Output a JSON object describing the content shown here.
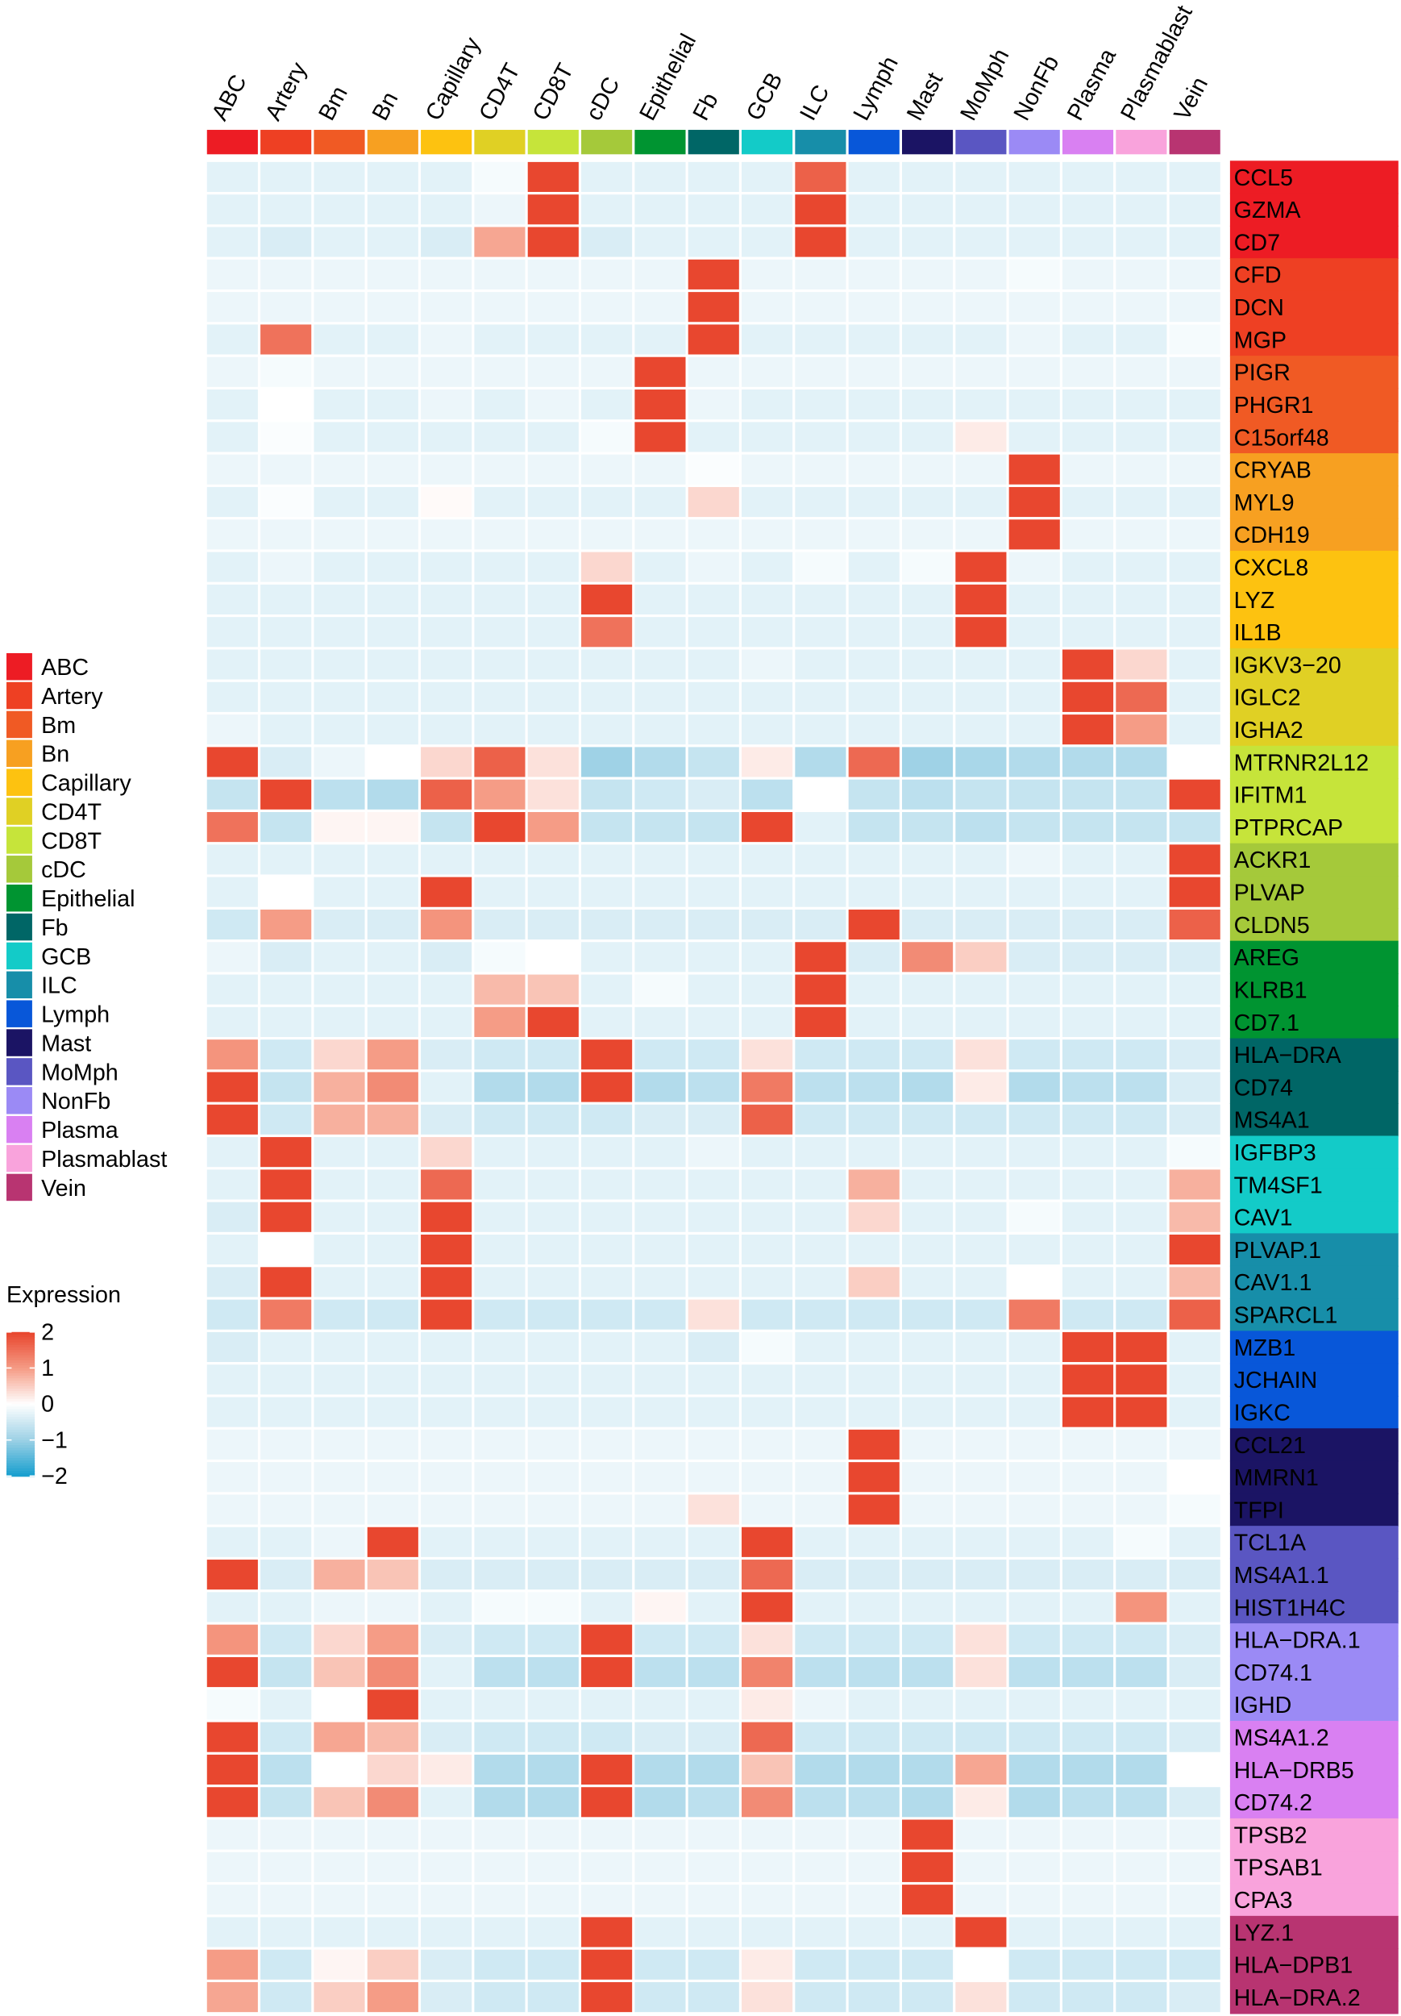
{
  "chart_data": {
    "type": "heatmap",
    "legend_title": "Expression",
    "scale": {
      "min": -2,
      "max": 2,
      "ticks": [
        "2",
        "1",
        "0",
        "−1",
        "−2"
      ],
      "tick_values": [
        2,
        1,
        0,
        -1,
        -2
      ],
      "stops": [
        [
          -2,
          "#1ba0cf"
        ],
        [
          -1,
          "#9fd2e6"
        ],
        [
          0,
          "#ffffff"
        ],
        [
          1,
          "#f59c86"
        ],
        [
          2,
          "#e8472f"
        ]
      ]
    },
    "columns": [
      "ABC",
      "Artery",
      "Bm",
      "Bn",
      "Capillary",
      "CD4T",
      "CD8T",
      "cDC",
      "Epithelial",
      "Fb",
      "GCB",
      "ILC",
      "Lymph",
      "Mast",
      "MoMph",
      "NonFb",
      "Plasma",
      "Plasmablast",
      "Vein"
    ],
    "cluster_colors": [
      "#ed1c24",
      "#ee4023",
      "#f05a24",
      "#f7a021",
      "#fdc210",
      "#e0d024",
      "#c6e43a",
      "#a5c93a",
      "#009431",
      "#006666",
      "#13cbc8",
      "#178ea9",
      "#0857d9",
      "#1b1464",
      "#5a56c2",
      "#9b8af5",
      "#d980f2",
      "#f9a3dc",
      "#b83471"
    ],
    "rows": [
      "CCL5",
      "GZMA",
      "CD7",
      "CFD",
      "DCN",
      "MGP",
      "PIGR",
      "PHGR1",
      "C15orf48",
      "CRYAB",
      "MYL9",
      "CDH19",
      "CXCL8",
      "LYZ",
      "IL1B",
      "IGKV3−20",
      "IGLC2",
      "IGHA2",
      "MTRNR2L12",
      "IFITM1",
      "PTPRCAP",
      "ACKR1",
      "PLVAP",
      "CLDN5",
      "AREG",
      "KLRB1",
      "CD7.1",
      "HLA−DRA",
      "CD74",
      "MS4A1",
      "IGFBP3",
      "TM4SF1",
      "CAV1",
      "PLVAP.1",
      "CAV1.1",
      "SPARCL1",
      "MZB1",
      "JCHAIN",
      "IGKC",
      "CCL21",
      "MMRN1",
      "TFPI",
      "TCL1A",
      "MS4A1.1",
      "HIST1H4C",
      "HLA−DRA.1",
      "CD74.1",
      "IGHD",
      "MS4A1.2",
      "HLA−DRB5",
      "CD74.2",
      "TPSB2",
      "TPSAB1",
      "CPA3",
      "LYZ.1",
      "HLA−DPB1",
      "HLA−DRA.2"
    ],
    "values": [
      [
        -0.3,
        -0.3,
        -0.3,
        -0.3,
        -0.3,
        -0.1,
        2,
        -0.3,
        -0.3,
        -0.3,
        -0.3,
        1.7,
        -0.3,
        -0.3,
        -0.3,
        -0.3,
        -0.3,
        -0.3,
        -0.3
      ],
      [
        -0.3,
        -0.3,
        -0.3,
        -0.3,
        -0.3,
        -0.2,
        2,
        -0.3,
        -0.3,
        -0.3,
        -0.3,
        2,
        -0.3,
        -0.3,
        -0.3,
        -0.3,
        -0.3,
        -0.3,
        -0.3
      ],
      [
        -0.3,
        -0.4,
        -0.3,
        -0.3,
        -0.4,
        0.9,
        2,
        -0.4,
        -0.3,
        -0.3,
        -0.3,
        2,
        -0.3,
        -0.3,
        -0.3,
        -0.3,
        -0.3,
        -0.3,
        -0.3
      ],
      [
        -0.2,
        -0.2,
        -0.2,
        -0.2,
        -0.2,
        -0.2,
        -0.2,
        -0.2,
        -0.2,
        2,
        -0.2,
        -0.2,
        -0.2,
        -0.2,
        -0.2,
        -0.1,
        -0.2,
        -0.2,
        -0.2
      ],
      [
        -0.2,
        -0.2,
        -0.2,
        -0.2,
        -0.2,
        -0.2,
        -0.2,
        -0.2,
        -0.2,
        2,
        -0.2,
        -0.2,
        -0.2,
        -0.2,
        -0.2,
        -0.2,
        -0.2,
        -0.2,
        -0.2
      ],
      [
        -0.3,
        1.5,
        -0.3,
        -0.3,
        -0.2,
        -0.3,
        -0.3,
        -0.3,
        -0.3,
        2,
        -0.3,
        -0.3,
        -0.3,
        -0.3,
        -0.3,
        -0.2,
        -0.3,
        -0.3,
        -0.1
      ],
      [
        -0.2,
        -0.1,
        -0.2,
        -0.2,
        -0.2,
        -0.2,
        -0.2,
        -0.2,
        2,
        -0.2,
        -0.2,
        -0.2,
        -0.2,
        -0.2,
        -0.2,
        -0.2,
        -0.2,
        -0.2,
        -0.2
      ],
      [
        -0.3,
        0,
        -0.3,
        -0.3,
        -0.2,
        -0.3,
        -0.2,
        -0.3,
        2,
        -0.2,
        -0.3,
        -0.3,
        -0.3,
        -0.3,
        -0.3,
        -0.3,
        -0.3,
        -0.3,
        -0.3
      ],
      [
        -0.3,
        -0.05,
        -0.3,
        -0.3,
        -0.3,
        -0.3,
        -0.3,
        -0.1,
        2,
        -0.3,
        -0.3,
        -0.3,
        -0.3,
        -0.3,
        0.2,
        -0.3,
        -0.3,
        -0.3,
        -0.3
      ],
      [
        -0.2,
        -0.2,
        -0.2,
        -0.2,
        -0.2,
        -0.2,
        -0.2,
        -0.2,
        -0.2,
        -0.05,
        -0.2,
        -0.2,
        -0.2,
        -0.2,
        -0.2,
        2,
        -0.2,
        -0.2,
        -0.2
      ],
      [
        -0.3,
        -0.05,
        -0.3,
        -0.3,
        0.05,
        -0.3,
        -0.3,
        -0.3,
        -0.3,
        0.4,
        -0.3,
        -0.3,
        -0.3,
        -0.3,
        -0.3,
        2,
        -0.3,
        -0.3,
        -0.3
      ],
      [
        -0.2,
        -0.2,
        -0.2,
        -0.2,
        -0.2,
        -0.2,
        -0.2,
        -0.2,
        -0.2,
        -0.2,
        -0.2,
        -0.2,
        -0.2,
        -0.2,
        -0.2,
        2,
        -0.2,
        -0.2,
        -0.2
      ],
      [
        -0.3,
        -0.2,
        -0.3,
        -0.3,
        -0.3,
        -0.3,
        -0.3,
        0.4,
        -0.3,
        -0.2,
        -0.3,
        -0.1,
        -0.3,
        -0.1,
        2,
        -0.2,
        -0.3,
        -0.3,
        -0.3
      ],
      [
        -0.3,
        -0.3,
        -0.3,
        -0.3,
        -0.3,
        -0.3,
        -0.3,
        2,
        -0.3,
        -0.3,
        -0.3,
        -0.3,
        -0.3,
        -0.3,
        2,
        -0.3,
        -0.3,
        -0.3,
        -0.3
      ],
      [
        -0.3,
        -0.3,
        -0.3,
        -0.3,
        -0.3,
        -0.3,
        -0.3,
        1.5,
        -0.3,
        -0.3,
        -0.3,
        -0.3,
        -0.3,
        -0.3,
        2,
        -0.3,
        -0.3,
        -0.3,
        -0.3
      ],
      [
        -0.3,
        -0.3,
        -0.3,
        -0.3,
        -0.3,
        -0.3,
        -0.3,
        -0.3,
        -0.3,
        -0.3,
        -0.2,
        -0.3,
        -0.3,
        -0.3,
        -0.3,
        -0.3,
        2,
        0.4,
        -0.3
      ],
      [
        -0.3,
        -0.3,
        -0.3,
        -0.3,
        -0.3,
        -0.3,
        -0.3,
        -0.3,
        -0.3,
        -0.3,
        -0.3,
        -0.3,
        -0.3,
        -0.3,
        -0.3,
        -0.3,
        2,
        1.6,
        -0.3
      ],
      [
        -0.2,
        -0.3,
        -0.3,
        -0.3,
        -0.3,
        -0.3,
        -0.3,
        -0.3,
        -0.3,
        -0.3,
        -0.3,
        -0.3,
        -0.3,
        -0.3,
        -0.3,
        -0.3,
        2,
        1.0,
        -0.3
      ],
      [
        2,
        -0.4,
        -0.2,
        0,
        0.4,
        1.7,
        0.3,
        -1,
        -0.8,
        -0.6,
        0.2,
        -0.8,
        1.6,
        -1,
        -0.9,
        -0.8,
        -0.8,
        -0.8,
        0
      ],
      [
        -0.6,
        2,
        -0.7,
        -0.8,
        1.7,
        1.0,
        0.3,
        -0.6,
        -0.5,
        -0.4,
        -0.7,
        0,
        -0.6,
        -0.7,
        -0.6,
        -0.6,
        -0.6,
        -0.6,
        2
      ],
      [
        1.5,
        -0.6,
        0.1,
        0.1,
        -0.6,
        2,
        1.0,
        -0.6,
        -0.6,
        -0.6,
        2,
        -0.3,
        -0.6,
        -0.6,
        -0.7,
        -0.6,
        -0.6,
        -0.6,
        -0.6
      ],
      [
        -0.3,
        -0.3,
        -0.3,
        -0.3,
        -0.3,
        -0.3,
        -0.3,
        -0.3,
        -0.3,
        -0.3,
        -0.3,
        -0.3,
        -0.3,
        -0.3,
        -0.3,
        -0.2,
        -0.3,
        -0.3,
        2
      ],
      [
        -0.3,
        0,
        -0.3,
        -0.3,
        2,
        -0.3,
        -0.3,
        -0.3,
        -0.3,
        -0.3,
        -0.3,
        -0.3,
        -0.3,
        -0.3,
        -0.3,
        -0.3,
        -0.3,
        -0.3,
        2
      ],
      [
        -0.5,
        1.0,
        -0.4,
        -0.4,
        1.1,
        -0.4,
        -0.4,
        -0.4,
        -0.4,
        -0.4,
        -0.4,
        -0.4,
        2,
        -0.4,
        -0.4,
        -0.4,
        -0.4,
        -0.4,
        1.7
      ],
      [
        -0.2,
        -0.4,
        -0.3,
        -0.3,
        -0.4,
        -0.1,
        0,
        -0.3,
        -0.3,
        -0.3,
        -0.3,
        2,
        -0.4,
        1.2,
        0.5,
        -0.4,
        -0.4,
        -0.4,
        -0.4
      ],
      [
        -0.3,
        -0.3,
        -0.3,
        -0.3,
        -0.3,
        0.7,
        0.6,
        -0.3,
        -0.1,
        -0.3,
        -0.3,
        2,
        -0.3,
        -0.3,
        -0.3,
        -0.3,
        -0.3,
        -0.3,
        -0.3
      ],
      [
        -0.3,
        -0.3,
        -0.3,
        -0.3,
        -0.3,
        1.0,
        2,
        -0.3,
        -0.3,
        -0.3,
        -0.3,
        2,
        -0.3,
        -0.3,
        -0.3,
        -0.3,
        -0.3,
        -0.3,
        -0.3
      ],
      [
        1.1,
        -0.5,
        0.4,
        1.0,
        -0.4,
        -0.5,
        -0.5,
        2,
        -0.5,
        -0.5,
        0.3,
        -0.5,
        -0.5,
        -0.5,
        0.3,
        -0.5,
        -0.5,
        -0.5,
        -0.4
      ],
      [
        2,
        -0.6,
        0.8,
        1.2,
        -0.3,
        -0.8,
        -0.8,
        2,
        -0.8,
        -0.7,
        1.4,
        -0.7,
        -0.7,
        -0.8,
        0.2,
        -0.8,
        -0.7,
        -0.7,
        -0.4
      ],
      [
        2,
        -0.5,
        0.8,
        0.8,
        -0.4,
        -0.5,
        -0.5,
        -0.5,
        -0.4,
        -0.4,
        1.7,
        -0.5,
        -0.5,
        -0.5,
        -0.5,
        -0.5,
        -0.5,
        -0.5,
        -0.4
      ],
      [
        -0.3,
        2,
        -0.3,
        -0.3,
        0.4,
        -0.3,
        -0.3,
        -0.3,
        -0.3,
        -0.2,
        -0.3,
        -0.3,
        -0.3,
        -0.3,
        -0.3,
        -0.3,
        -0.3,
        -0.3,
        -0.1
      ],
      [
        -0.3,
        2,
        -0.3,
        -0.3,
        1.6,
        -0.3,
        -0.3,
        -0.3,
        -0.3,
        -0.3,
        -0.3,
        -0.3,
        0.8,
        -0.3,
        -0.3,
        -0.3,
        -0.3,
        -0.3,
        0.8
      ],
      [
        -0.4,
        2,
        -0.3,
        -0.3,
        2,
        -0.3,
        -0.3,
        -0.3,
        -0.3,
        -0.3,
        -0.3,
        -0.3,
        0.4,
        -0.3,
        -0.3,
        -0.1,
        -0.3,
        -0.3,
        0.7
      ],
      [
        -0.3,
        0,
        -0.3,
        -0.3,
        2,
        -0.3,
        -0.3,
        -0.3,
        -0.3,
        -0.3,
        -0.3,
        -0.3,
        -0.3,
        -0.3,
        -0.3,
        -0.3,
        -0.3,
        -0.3,
        2
      ],
      [
        -0.4,
        2,
        -0.3,
        -0.3,
        2,
        -0.3,
        -0.3,
        -0.3,
        -0.3,
        -0.3,
        -0.3,
        -0.3,
        0.5,
        -0.3,
        -0.3,
        0,
        -0.3,
        -0.3,
        0.7
      ],
      [
        -0.5,
        1.4,
        -0.5,
        -0.5,
        2,
        -0.5,
        -0.5,
        -0.5,
        -0.5,
        0.3,
        -0.5,
        -0.5,
        -0.5,
        -0.5,
        -0.5,
        1.4,
        -0.5,
        -0.5,
        1.7
      ],
      [
        -0.4,
        -0.3,
        -0.3,
        -0.3,
        -0.3,
        -0.3,
        -0.3,
        -0.3,
        -0.3,
        -0.4,
        -0.1,
        -0.3,
        -0.3,
        -0.3,
        -0.3,
        -0.3,
        2,
        2,
        -0.3
      ],
      [
        -0.3,
        -0.3,
        -0.3,
        -0.3,
        -0.3,
        -0.3,
        -0.3,
        -0.3,
        -0.3,
        -0.3,
        -0.3,
        -0.3,
        -0.3,
        -0.3,
        -0.3,
        -0.3,
        2,
        2,
        -0.3
      ],
      [
        -0.3,
        -0.3,
        -0.3,
        -0.3,
        -0.3,
        -0.3,
        -0.3,
        -0.3,
        -0.3,
        -0.3,
        -0.3,
        -0.3,
        -0.3,
        -0.3,
        -0.3,
        -0.3,
        2,
        2,
        -0.3
      ],
      [
        -0.2,
        -0.2,
        -0.2,
        -0.2,
        -0.2,
        -0.2,
        -0.2,
        -0.2,
        -0.2,
        -0.2,
        -0.2,
        -0.2,
        2,
        -0.2,
        -0.2,
        -0.2,
        -0.2,
        -0.2,
        -0.2
      ],
      [
        -0.2,
        -0.2,
        -0.2,
        -0.2,
        -0.2,
        -0.2,
        -0.2,
        -0.2,
        -0.2,
        -0.2,
        -0.2,
        -0.2,
        2,
        -0.2,
        -0.2,
        -0.2,
        -0.2,
        -0.2,
        0
      ],
      [
        -0.2,
        -0.2,
        -0.2,
        -0.2,
        -0.2,
        -0.2,
        -0.2,
        -0.2,
        -0.2,
        0.3,
        -0.2,
        -0.2,
        2,
        -0.2,
        -0.2,
        -0.2,
        -0.2,
        -0.2,
        -0.1
      ],
      [
        -0.3,
        -0.3,
        -0.2,
        2,
        -0.3,
        -0.3,
        -0.3,
        -0.3,
        -0.3,
        -0.3,
        2,
        -0.3,
        -0.3,
        -0.3,
        -0.3,
        -0.3,
        -0.3,
        -0.1,
        -0.3
      ],
      [
        2,
        -0.4,
        0.8,
        0.6,
        -0.4,
        -0.4,
        -0.4,
        -0.4,
        -0.4,
        -0.4,
        1.6,
        -0.4,
        -0.4,
        -0.4,
        -0.4,
        -0.4,
        -0.4,
        -0.4,
        -0.4
      ],
      [
        -0.3,
        -0.3,
        -0.2,
        -0.2,
        -0.3,
        -0.1,
        -0.1,
        -0.3,
        0.1,
        -0.3,
        2,
        -0.3,
        -0.3,
        -0.3,
        -0.3,
        -0.3,
        -0.3,
        1.1,
        -0.3
      ],
      [
        1.1,
        -0.5,
        0.4,
        1.0,
        -0.4,
        -0.5,
        -0.5,
        2,
        -0.5,
        -0.5,
        0.3,
        -0.5,
        -0.5,
        -0.5,
        0.3,
        -0.5,
        -0.5,
        -0.5,
        -0.4
      ],
      [
        2,
        -0.6,
        0.6,
        1.2,
        -0.3,
        -0.7,
        -0.7,
        2,
        -0.7,
        -0.7,
        1.3,
        -0.7,
        -0.7,
        -0.7,
        0.3,
        -0.7,
        -0.7,
        -0.7,
        -0.4
      ],
      [
        -0.1,
        -0.3,
        0,
        2,
        -0.3,
        -0.3,
        -0.3,
        -0.3,
        -0.3,
        -0.3,
        0.2,
        -0.2,
        -0.3,
        -0.3,
        -0.3,
        -0.3,
        -0.3,
        -0.3,
        -0.3
      ],
      [
        2,
        -0.5,
        0.9,
        0.7,
        -0.4,
        -0.5,
        -0.5,
        -0.5,
        -0.4,
        -0.4,
        1.6,
        -0.5,
        -0.5,
        -0.5,
        -0.5,
        -0.5,
        -0.5,
        -0.5,
        -0.4
      ],
      [
        2,
        -0.7,
        0,
        0.4,
        0.2,
        -0.8,
        -0.8,
        2,
        -0.8,
        -0.8,
        0.6,
        -0.8,
        -0.8,
        -0.8,
        0.9,
        -0.8,
        -0.8,
        -0.8,
        0
      ],
      [
        2,
        -0.6,
        0.6,
        1.2,
        -0.3,
        -0.8,
        -0.8,
        2,
        -0.8,
        -0.7,
        1.2,
        -0.7,
        -0.7,
        -0.8,
        0.2,
        -0.8,
        -0.7,
        -0.7,
        -0.4
      ],
      [
        -0.2,
        -0.2,
        -0.2,
        -0.2,
        -0.2,
        -0.2,
        -0.2,
        -0.2,
        -0.2,
        -0.2,
        -0.2,
        -0.2,
        -0.2,
        2,
        -0.2,
        -0.2,
        -0.2,
        -0.2,
        -0.2
      ],
      [
        -0.2,
        -0.2,
        -0.2,
        -0.2,
        -0.2,
        -0.2,
        -0.2,
        -0.2,
        -0.2,
        -0.2,
        -0.2,
        -0.2,
        -0.2,
        2,
        -0.2,
        -0.2,
        -0.2,
        -0.2,
        -0.2
      ],
      [
        -0.2,
        -0.2,
        -0.2,
        -0.2,
        -0.2,
        -0.2,
        -0.2,
        -0.2,
        -0.2,
        -0.2,
        -0.2,
        -0.2,
        -0.2,
        2,
        -0.2,
        -0.2,
        -0.2,
        -0.2,
        -0.2
      ],
      [
        -0.3,
        -0.3,
        -0.3,
        -0.3,
        -0.3,
        -0.3,
        -0.3,
        2,
        -0.3,
        -0.3,
        -0.3,
        -0.3,
        -0.3,
        -0.3,
        2,
        -0.3,
        -0.3,
        -0.3,
        -0.3
      ],
      [
        1.0,
        -0.5,
        0.1,
        0.5,
        -0.4,
        -0.5,
        -0.5,
        2,
        -0.5,
        -0.5,
        0.2,
        -0.5,
        -0.5,
        -0.5,
        0,
        -0.5,
        -0.5,
        -0.5,
        -0.5
      ],
      [
        0.9,
        -0.5,
        0.5,
        1.0,
        -0.4,
        -0.5,
        -0.5,
        2,
        -0.5,
        -0.5,
        0.3,
        -0.5,
        -0.5,
        -0.5,
        0.3,
        -0.5,
        -0.5,
        -0.5,
        -0.4
      ]
    ]
  }
}
